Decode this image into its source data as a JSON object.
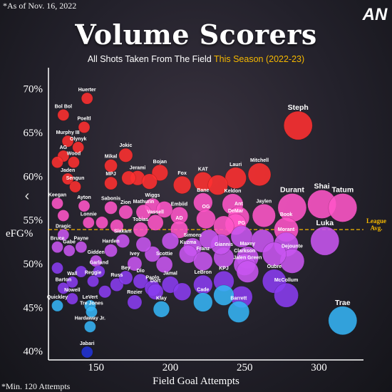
{
  "header": {
    "as_of": "*As of Nov. 16, 2022",
    "title": "Volume Scorers",
    "subtitle_main": "All Shots Taken From The Field ",
    "subtitle_highlight": "This Season (2022-23)",
    "footnote": "*Min. 120 Attempts",
    "logo_text": "AN",
    "prev_glyph": "‹"
  },
  "colors": {
    "red": "#ff3030",
    "pink": "#ff55c8",
    "purple": "#c855f0",
    "violet": "#8a3cf0",
    "blue": "#35b4f5",
    "darkblue": "#2233d8",
    "league": "#f5b800"
  },
  "chart_data": {
    "type": "scatter",
    "title": "Volume Scorers",
    "xlabel": "Field Goal Attempts",
    "ylabel": "eFG%",
    "xlim": [
      118,
      330
    ],
    "ylim": [
      39,
      72
    ],
    "x_ticks": [
      150,
      200,
      250,
      300
    ],
    "y_ticks": [
      40,
      45,
      50,
      55,
      60,
      65,
      70
    ],
    "y_tick_labels": [
      "40%",
      "45%",
      "50%",
      "55%",
      "60%",
      "65%",
      "70%"
    ],
    "league_avg": 53.9,
    "league_avg_label": "League Avg.",
    "grid": false,
    "players": [
      {
        "name": "Steph",
        "x": 286,
        "y": 65.8,
        "c": "red",
        "big": true
      },
      {
        "name": "Huerter",
        "x": 144,
        "y": 68.9,
        "c": "red"
      },
      {
        "name": "Bol Bol",
        "x": 128,
        "y": 67.0,
        "c": "red"
      },
      {
        "name": "Poeltl",
        "x": 142,
        "y": 65.6,
        "c": "red"
      },
      {
        "name": "Murphy III",
        "x": 131,
        "y": 64.0,
        "c": "red"
      },
      {
        "name": "Olynyk",
        "x": 138,
        "y": 63.3,
        "c": "red"
      },
      {
        "name": "AG",
        "x": 128,
        "y": 62.3,
        "c": "red"
      },
      {
        "name": "Wood",
        "x": 135,
        "y": 61.6,
        "c": "red"
      },
      {
        "name": "",
        "x": 124,
        "y": 61.6,
        "c": "red"
      },
      {
        "name": "Mikal",
        "x": 160,
        "y": 61.2,
        "c": "red"
      },
      {
        "name": "Jokic",
        "x": 170,
        "y": 62.4,
        "c": "red"
      },
      {
        "name": "Jaden",
        "x": 131,
        "y": 59.7,
        "c": "red"
      },
      {
        "name": "Sengun",
        "x": 136,
        "y": 58.8,
        "c": "red"
      },
      {
        "name": "MPJ",
        "x": 160,
        "y": 59.2,
        "c": "red"
      },
      {
        "name": "Jerami",
        "x": 178,
        "y": 59.8,
        "c": "red"
      },
      {
        "name": "Bojan",
        "x": 193,
        "y": 60.4,
        "c": "red"
      },
      {
        "name": "",
        "x": 172,
        "y": 59.8,
        "c": "red"
      },
      {
        "name": "",
        "x": 186,
        "y": 59.4,
        "c": "red"
      },
      {
        "name": "Fox",
        "x": 208,
        "y": 59.0,
        "c": "red"
      },
      {
        "name": "KAT",
        "x": 222,
        "y": 59.4,
        "c": "red"
      },
      {
        "name": "Lauri",
        "x": 244,
        "y": 59.8,
        "c": "red"
      },
      {
        "name": "Mitchell",
        "x": 260,
        "y": 60.2,
        "c": "red"
      },
      {
        "name": "",
        "x": 232,
        "y": 59.0,
        "c": "red"
      },
      {
        "name": "Sabonis",
        "x": 160,
        "y": 56.4,
        "c": "pink"
      },
      {
        "name": "Zion",
        "x": 170,
        "y": 55.9,
        "c": "pink"
      },
      {
        "name": "Keegan",
        "x": 124,
        "y": 56.9,
        "c": "pink"
      },
      {
        "name": "Ayton",
        "x": 142,
        "y": 56.6,
        "c": "pink"
      },
      {
        "name": "Lonnie",
        "x": 145,
        "y": 54.7,
        "c": "pink"
      },
      {
        "name": "Wiggs",
        "x": 188,
        "y": 56.6,
        "c": "pink"
      },
      {
        "name": "Mathurin",
        "x": 182,
        "y": 55.9,
        "c": "pink"
      },
      {
        "name": "Vassell",
        "x": 190,
        "y": 54.7,
        "c": "pink"
      },
      {
        "name": "Tobias",
        "x": 180,
        "y": 53.9,
        "c": "pink"
      },
      {
        "name": "Embiid",
        "x": 206,
        "y": 55.5,
        "c": "pink"
      },
      {
        "name": "AD",
        "x": 206,
        "y": 53.9,
        "c": "pink"
      },
      {
        "name": "Bane",
        "x": 222,
        "y": 57.0,
        "c": "pink"
      },
      {
        "name": "OG",
        "x": 224,
        "y": 55.1,
        "c": "pink"
      },
      {
        "name": "Keldon",
        "x": 242,
        "y": 56.8,
        "c": "pink"
      },
      {
        "name": "Ant",
        "x": 246,
        "y": 55.3,
        "c": "pink"
      },
      {
        "name": "Jaylen",
        "x": 263,
        "y": 55.5,
        "c": "pink"
      },
      {
        "name": "DeMar",
        "x": 244,
        "y": 54.5,
        "c": "pink"
      },
      {
        "name": "Durant",
        "x": 282,
        "y": 56.4,
        "c": "pink",
        "big": true
      },
      {
        "name": "Shai",
        "x": 302,
        "y": 56.8,
        "c": "pink",
        "big": true
      },
      {
        "name": "Tatum",
        "x": 316,
        "y": 56.4,
        "c": "pink",
        "big": true
      },
      {
        "name": "Book",
        "x": 278,
        "y": 53.9,
        "c": "pink"
      },
      {
        "name": "",
        "x": 128,
        "y": 55.5,
        "c": "pink"
      },
      {
        "name": "",
        "x": 154,
        "y": 54.7,
        "c": "pink"
      },
      {
        "name": "",
        "x": 196,
        "y": 56.2,
        "c": "pink"
      },
      {
        "name": "",
        "x": 164,
        "y": 54.3,
        "c": "pink"
      },
      {
        "name": "",
        "x": 236,
        "y": 54.3,
        "c": "pink"
      },
      {
        "name": "Dragic",
        "x": 128,
        "y": 53.3,
        "c": "purple"
      },
      {
        "name": "Siakam",
        "x": 168,
        "y": 52.6,
        "c": "purple"
      },
      {
        "name": "Bruce",
        "x": 124,
        "y": 51.9,
        "c": "purple"
      },
      {
        "name": "Gabe",
        "x": 132,
        "y": 51.5,
        "c": "purple"
      },
      {
        "name": "Payne",
        "x": 140,
        "y": 51.9,
        "c": "purple"
      },
      {
        "name": "Harden",
        "x": 160,
        "y": 51.5,
        "c": "purple"
      },
      {
        "name": "Simons",
        "x": 215,
        "y": 51.9,
        "c": "purple"
      },
      {
        "name": "Kuzma",
        "x": 212,
        "y": 51.1,
        "c": "purple"
      },
      {
        "name": "Franz",
        "x": 222,
        "y": 50.3,
        "c": "purple"
      },
      {
        "name": "Giannis",
        "x": 236,
        "y": 50.7,
        "c": "purple"
      },
      {
        "name": "PG",
        "x": 248,
        "y": 53.1,
        "c": "purple"
      },
      {
        "name": "Morant",
        "x": 278,
        "y": 52.2,
        "c": "purple"
      },
      {
        "name": "Luka",
        "x": 304,
        "y": 52.6,
        "c": "purple",
        "big": true
      },
      {
        "name": "Dejounte",
        "x": 282,
        "y": 50.3,
        "c": "purple"
      },
      {
        "name": "Maxey",
        "x": 252,
        "y": 50.7,
        "c": "purple"
      },
      {
        "name": "Clarkson",
        "x": 250,
        "y": 49.9,
        "c": "purple"
      },
      {
        "name": "Jalen Green",
        "x": 252,
        "y": 49.1,
        "c": "purple"
      },
      {
        "name": "Gidden",
        "x": 150,
        "y": 50.3,
        "c": "purple"
      },
      {
        "name": "Ivey",
        "x": 176,
        "y": 50.0,
        "c": "purple"
      },
      {
        "name": "Scottie",
        "x": 196,
        "y": 49.9,
        "c": "purple"
      },
      {
        "name": "",
        "x": 188,
        "y": 51.1,
        "c": "purple"
      },
      {
        "name": "",
        "x": 200,
        "y": 52.6,
        "c": "purple"
      },
      {
        "name": "",
        "x": 234,
        "y": 52.2,
        "c": "purple"
      },
      {
        "name": "",
        "x": 262,
        "y": 52.6,
        "c": "purple"
      },
      {
        "name": "",
        "x": 270,
        "y": 51.1,
        "c": "purple"
      },
      {
        "name": "",
        "x": 226,
        "y": 52.8,
        "c": "purple"
      },
      {
        "name": "",
        "x": 182,
        "y": 52.2,
        "c": "purple"
      },
      {
        "name": "Garland",
        "x": 152,
        "y": 49.1,
        "c": "violet"
      },
      {
        "name": "Reggie",
        "x": 148,
        "y": 48.0,
        "c": "violet"
      },
      {
        "name": "Wall",
        "x": 134,
        "y": 47.9,
        "c": "violet"
      },
      {
        "name": "Barton",
        "x": 128,
        "y": 47.2,
        "c": "violet"
      },
      {
        "name": "Nowell",
        "x": 134,
        "y": 46.0,
        "c": "violet"
      },
      {
        "name": "Russ",
        "x": 164,
        "y": 47.6,
        "c": "violet"
      },
      {
        "name": "Bey",
        "x": 170,
        "y": 48.4,
        "c": "violet"
      },
      {
        "name": "Dlo",
        "x": 180,
        "y": 48.0,
        "c": "violet"
      },
      {
        "name": "Paolo",
        "x": 188,
        "y": 47.2,
        "c": "violet"
      },
      {
        "name": "Jamal",
        "x": 200,
        "y": 47.6,
        "c": "violet"
      },
      {
        "name": "LeBron",
        "x": 222,
        "y": 47.6,
        "c": "violet"
      },
      {
        "name": "KPJ",
        "x": 236,
        "y": 48.0,
        "c": "violet"
      },
      {
        "name": "Oubre",
        "x": 270,
        "y": 48.0,
        "c": "violet"
      },
      {
        "name": "McCollum",
        "x": 278,
        "y": 46.4,
        "c": "violet"
      },
      {
        "name": "Rozier",
        "x": 176,
        "y": 45.6,
        "c": "violet"
      },
      {
        "name": "Dort",
        "x": 190,
        "y": 46.8,
        "c": "violet"
      },
      {
        "name": "",
        "x": 124,
        "y": 49.5,
        "c": "violet"
      },
      {
        "name": "",
        "x": 140,
        "y": 49.1,
        "c": "violet"
      },
      {
        "name": "",
        "x": 156,
        "y": 46.8,
        "c": "violet"
      },
      {
        "name": "",
        "x": 208,
        "y": 46.8,
        "c": "violet"
      },
      {
        "name": "",
        "x": 248,
        "y": 46.2,
        "c": "violet"
      },
      {
        "name": "Quickley",
        "x": 124,
        "y": 45.2,
        "c": "blue"
      },
      {
        "name": "LeVert",
        "x": 146,
        "y": 45.2,
        "c": "blue"
      },
      {
        "name": "Tre Jones",
        "x": 147,
        "y": 44.5,
        "c": "blue"
      },
      {
        "name": "Hardaway Jr.",
        "x": 146,
        "y": 42.8,
        "c": "blue"
      },
      {
        "name": "Klay",
        "x": 194,
        "y": 44.8,
        "c": "blue"
      },
      {
        "name": "Cade",
        "x": 222,
        "y": 45.6,
        "c": "blue"
      },
      {
        "name": "Barrett",
        "x": 246,
        "y": 44.5,
        "c": "blue"
      },
      {
        "name": "Trae",
        "x": 316,
        "y": 43.5,
        "c": "blue",
        "big": true
      },
      {
        "name": "",
        "x": 236,
        "y": 46.4,
        "c": "blue"
      },
      {
        "name": "Jabari",
        "x": 144,
        "y": 39.9,
        "c": "darkblue"
      }
    ]
  }
}
